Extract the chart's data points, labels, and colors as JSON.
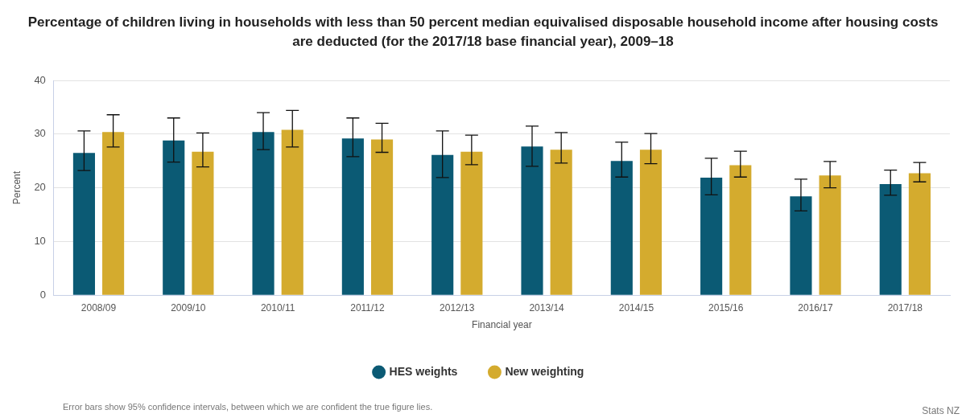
{
  "chart_data": {
    "type": "bar",
    "title": "Percentage of children living in households with less than 50 percent median equivalised disposable household income after housing costs are deducted (for the 2017/18 base financial year), 2009–18",
    "xlabel": "Financial year",
    "ylabel": "Percent",
    "categories": [
      "2008/09",
      "2009/10",
      "2010/11",
      "2011/12",
      "2012/13",
      "2013/14",
      "2014/15",
      "2015/16",
      "2016/17",
      "2017/18"
    ],
    "series": [
      {
        "name": "HES weights",
        "color": "#0b5a74",
        "values": [
          26.5,
          28.8,
          30.4,
          29.2,
          26.1,
          27.7,
          25.0,
          21.9,
          18.4,
          20.7
        ],
        "errors": [
          [
            23.2,
            30.6
          ],
          [
            24.8,
            33.0
          ],
          [
            27.1,
            34.0
          ],
          [
            25.8,
            33.0
          ],
          [
            21.9,
            30.6
          ],
          [
            24.0,
            31.5
          ],
          [
            22.0,
            28.5
          ],
          [
            18.7,
            25.5
          ],
          [
            15.7,
            21.6
          ],
          [
            18.6,
            23.3
          ]
        ]
      },
      {
        "name": "New weighting",
        "color": "#d4ab2e",
        "values": [
          30.4,
          26.7,
          30.8,
          29.0,
          26.7,
          27.1,
          27.1,
          24.2,
          22.3,
          22.7
        ],
        "errors": [
          [
            27.6,
            33.6
          ],
          [
            23.9,
            30.2
          ],
          [
            27.6,
            34.4
          ],
          [
            26.6,
            32.0
          ],
          [
            24.3,
            29.8
          ],
          [
            24.6,
            30.3
          ],
          [
            24.5,
            30.1
          ],
          [
            22.0,
            26.8
          ],
          [
            20.0,
            24.9
          ],
          [
            21.1,
            24.7
          ]
        ]
      }
    ],
    "ylim": [
      0,
      40
    ],
    "yticks": [
      0,
      10,
      20,
      30,
      40
    ],
    "grid": "y",
    "legend": "bottom",
    "annotations": [
      "Error bars show 95% confidence intervals, between which we are confident the true figure lies.",
      "Stats NZ"
    ]
  }
}
